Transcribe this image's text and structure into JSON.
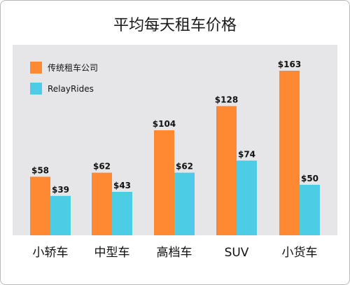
{
  "chart_data": {
    "type": "bar",
    "title": "平均每天租车价格",
    "categories": [
      "小轿车",
      "中型车",
      "高档车",
      "SUV",
      "小货车"
    ],
    "series": [
      {
        "name": "传统租车公司",
        "values": [
          58,
          62,
          104,
          128,
          163
        ],
        "labels": [
          "$58",
          "$62",
          "$104",
          "$128",
          "$163"
        ],
        "color": "#ff8833"
      },
      {
        "name": "RelayRides",
        "values": [
          39,
          43,
          62,
          74,
          50
        ],
        "labels": [
          "$39",
          "$43",
          "$62",
          "$74",
          "$50"
        ],
        "color": "#4dcce6"
      }
    ],
    "ylim": [
      0,
      163
    ],
    "grid": false,
    "legend_position": "top-left",
    "plot_background": "#e6e6e8"
  }
}
